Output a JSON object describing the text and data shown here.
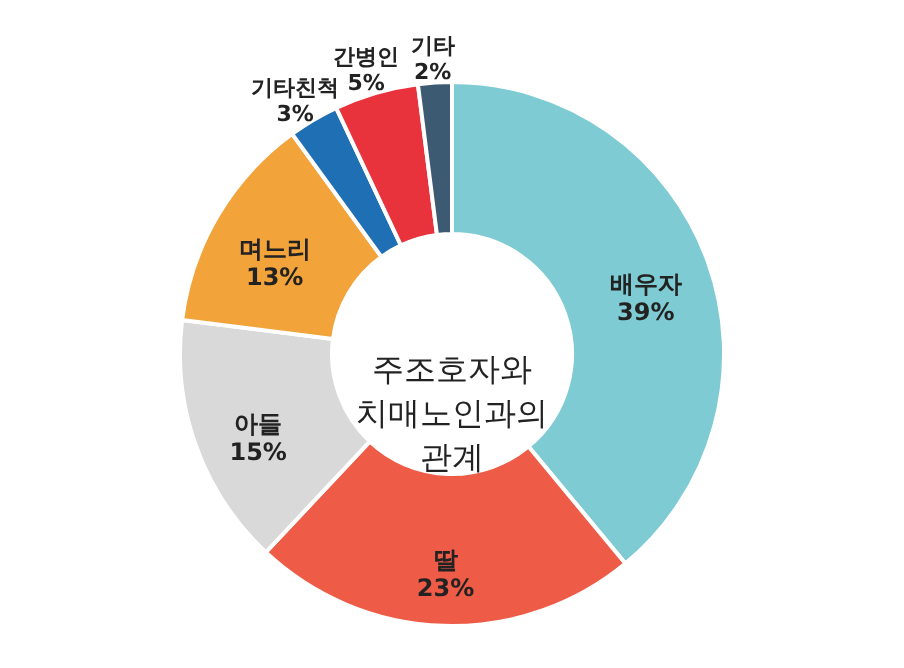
{
  "chart_data": {
    "type": "donut",
    "title": "주조호자와\n치매노인과의\n관계",
    "categories": [
      "배우자",
      "딸",
      "아들",
      "며느리",
      "기타친척",
      "간병인",
      "기타"
    ],
    "values": [
      39,
      23,
      15,
      13,
      3,
      5,
      2
    ],
    "value_labels": [
      "39%",
      "23%",
      "15%",
      "13%",
      "3%",
      "5%",
      "2%"
    ],
    "colors": [
      "#7ecbd3",
      "#ee5b47",
      "#d9d9d9",
      "#f2a33a",
      "#1f6fb5",
      "#e8323c",
      "#3d5a73"
    ]
  }
}
